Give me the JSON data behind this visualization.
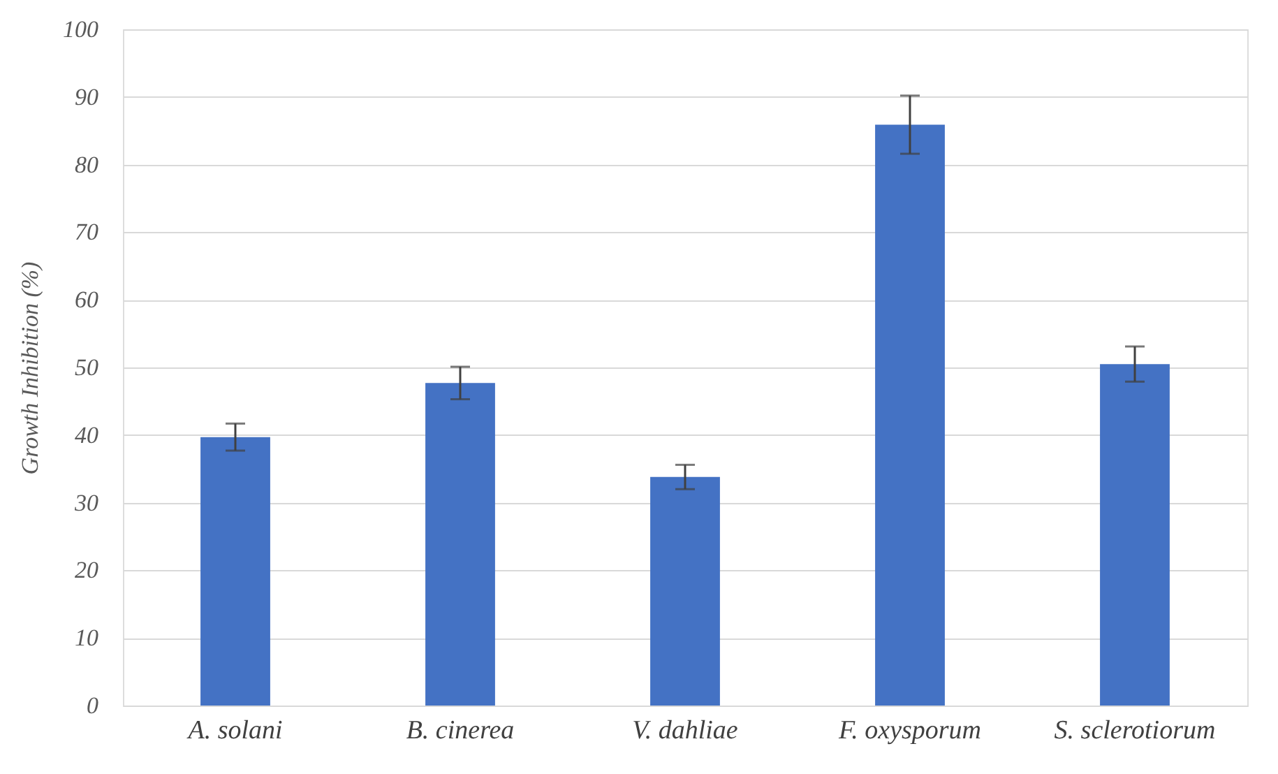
{
  "chart_data": {
    "type": "bar",
    "ylabel": "Growth Inhibition (%)",
    "categories": [
      "A. solani",
      "B. cinerea",
      "V. dahliae",
      "F. oxysporum",
      "S. sclerotiorum"
    ],
    "values": [
      39.7,
      47.7,
      33.8,
      85.9,
      50.5
    ],
    "errors": [
      2.0,
      2.4,
      1.8,
      4.3,
      2.6
    ],
    "color": "#4472c4",
    "ylim": [
      0,
      100
    ],
    "yticks": [
      0,
      10,
      20,
      30,
      40,
      50,
      60,
      70,
      80,
      90,
      100
    ],
    "grid": "y"
  }
}
